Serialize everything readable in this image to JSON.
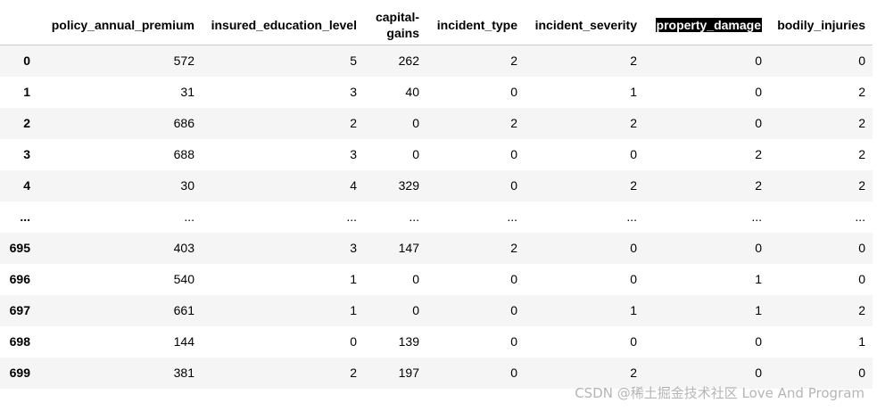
{
  "table": {
    "index_header": "",
    "columns": [
      "policy_annual_premium",
      "insured_education_level",
      "capital-gains",
      "incident_type",
      "incident_severity",
      "property_damage",
      "bodily_injuries"
    ],
    "capital_gains_header_lines": [
      "capital-",
      "gains"
    ],
    "rows": [
      {
        "index": "0",
        "values": [
          "572",
          "5",
          "262",
          "2",
          "2",
          "0",
          "0"
        ]
      },
      {
        "index": "1",
        "values": [
          "31",
          "3",
          "40",
          "0",
          "1",
          "0",
          "2"
        ]
      },
      {
        "index": "2",
        "values": [
          "686",
          "2",
          "0",
          "2",
          "2",
          "0",
          "2"
        ]
      },
      {
        "index": "3",
        "values": [
          "688",
          "3",
          "0",
          "0",
          "0",
          "2",
          "2"
        ]
      },
      {
        "index": "4",
        "values": [
          "30",
          "4",
          "329",
          "0",
          "2",
          "2",
          "2"
        ]
      },
      {
        "index": "...",
        "values": [
          "...",
          "...",
          "...",
          "...",
          "...",
          "...",
          "..."
        ]
      },
      {
        "index": "695",
        "values": [
          "403",
          "3",
          "147",
          "2",
          "0",
          "0",
          "0"
        ]
      },
      {
        "index": "696",
        "values": [
          "540",
          "1",
          "0",
          "0",
          "0",
          "1",
          "0"
        ]
      },
      {
        "index": "697",
        "values": [
          "661",
          "1",
          "0",
          "0",
          "1",
          "1",
          "2"
        ]
      },
      {
        "index": "698",
        "values": [
          "144",
          "0",
          "139",
          "0",
          "0",
          "0",
          "1"
        ]
      },
      {
        "index": "699",
        "values": [
          "381",
          "2",
          "197",
          "0",
          "2",
          "0",
          "0"
        ]
      }
    ]
  },
  "watermark": "CSDN @稀土掘金技术社区 Love And Program",
  "colors": {
    "stripe": "#f5f5f5",
    "highlight_bg": "#000000",
    "highlight_fg": "#ffffff"
  }
}
